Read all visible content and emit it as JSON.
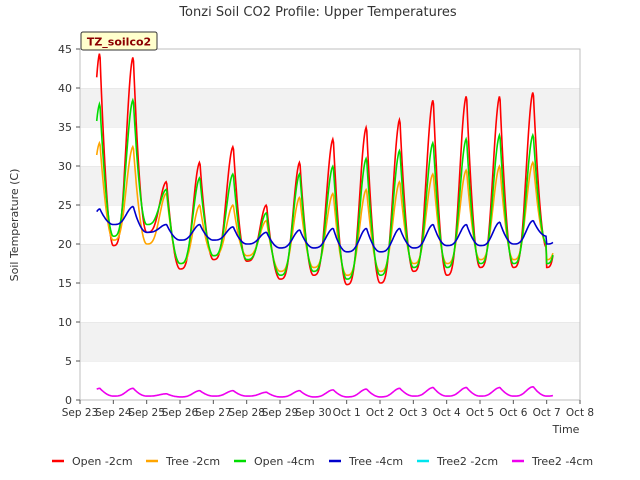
{
  "chart_data": {
    "type": "line",
    "title": "Tonzi Soil CO2 Profile: Upper Temperatures",
    "xlabel": "Time",
    "ylabel": "Soil Temperature (C)",
    "ylim": [
      0,
      45
    ],
    "yticks": [
      0,
      5,
      10,
      15,
      20,
      25,
      30,
      35,
      40,
      45
    ],
    "xlim": [
      0,
      15
    ],
    "xticks": [
      "Sep 23",
      "Sep 24",
      "Sep 25",
      "Sep 26",
      "Sep 27",
      "Sep 28",
      "Sep 29",
      "Sep 30",
      "Oct 1",
      "Oct 2",
      "Oct 3",
      "Oct 4",
      "Oct 5",
      "Oct 6",
      "Oct 7",
      "Oct 8"
    ],
    "grid": "horizontal bands",
    "legend_position": "bottom",
    "annotation": "TZ_soilco2",
    "series": [
      {
        "name": "Open -2cm",
        "color": "#ff0000",
        "daily_min": [
          17.8,
          19.8,
          21.5,
          16.8,
          18.0,
          17.8,
          15.5,
          16.0,
          14.8,
          15.0,
          16.5,
          16.0,
          17.0,
          17.0,
          19.5
        ],
        "daily_max": [
          44.5,
          44.0,
          28.0,
          30.5,
          32.5,
          25.0,
          30.5,
          33.5,
          35.0,
          36.0,
          38.5,
          39.0,
          39.0,
          39.5
        ]
      },
      {
        "name": "Tree -2cm",
        "color": "#ffa500",
        "daily_min": [
          19.5,
          20.5,
          20.0,
          17.5,
          18.5,
          18.5,
          16.5,
          17.0,
          16.0,
          16.5,
          17.5,
          17.5,
          18.0,
          18.0,
          20.0
        ],
        "daily_max": [
          33.0,
          32.5,
          26.5,
          25.0,
          25.0,
          23.0,
          26.0,
          26.5,
          27.0,
          28.0,
          29.0,
          29.5,
          30.0,
          30.5
        ]
      },
      {
        "name": "Open -4cm",
        "color": "#00dd00",
        "daily_min": [
          19.0,
          21.0,
          22.5,
          17.5,
          18.5,
          18.0,
          16.0,
          16.5,
          15.5,
          16.0,
          17.0,
          17.0,
          17.5,
          17.5,
          20.0
        ],
        "daily_max": [
          38.0,
          38.5,
          27.0,
          28.5,
          29.0,
          24.0,
          29.0,
          30.0,
          31.0,
          32.0,
          33.0,
          33.5,
          34.0,
          34.0
        ]
      },
      {
        "name": "Tree -4cm",
        "color": "#0000cc",
        "daily_min": [
          21.5,
          22.5,
          21.5,
          20.5,
          20.5,
          20.0,
          19.5,
          19.5,
          19.0,
          19.0,
          19.5,
          19.8,
          19.8,
          20.0,
          21.0
        ],
        "daily_max": [
          24.5,
          24.8,
          22.5,
          22.5,
          22.2,
          21.5,
          21.8,
          22.0,
          22.0,
          22.0,
          22.5,
          22.5,
          22.8,
          23.0
        ]
      },
      {
        "name": "Tree2 -2cm",
        "color": "#00e5ee",
        "daily_min": [],
        "daily_max": []
      },
      {
        "name": "Tree2 -4cm",
        "color": "#ee00ee",
        "daily_min": [
          0.5,
          0.5,
          0.5,
          0.4,
          0.5,
          0.5,
          0.4,
          0.4,
          0.4,
          0.4,
          0.5,
          0.5,
          0.5,
          0.5,
          0.5
        ],
        "daily_max": [
          1.5,
          1.5,
          0.8,
          1.2,
          1.2,
          1.0,
          1.2,
          1.3,
          1.4,
          1.5,
          1.6,
          1.6,
          1.6,
          1.7
        ]
      }
    ]
  }
}
